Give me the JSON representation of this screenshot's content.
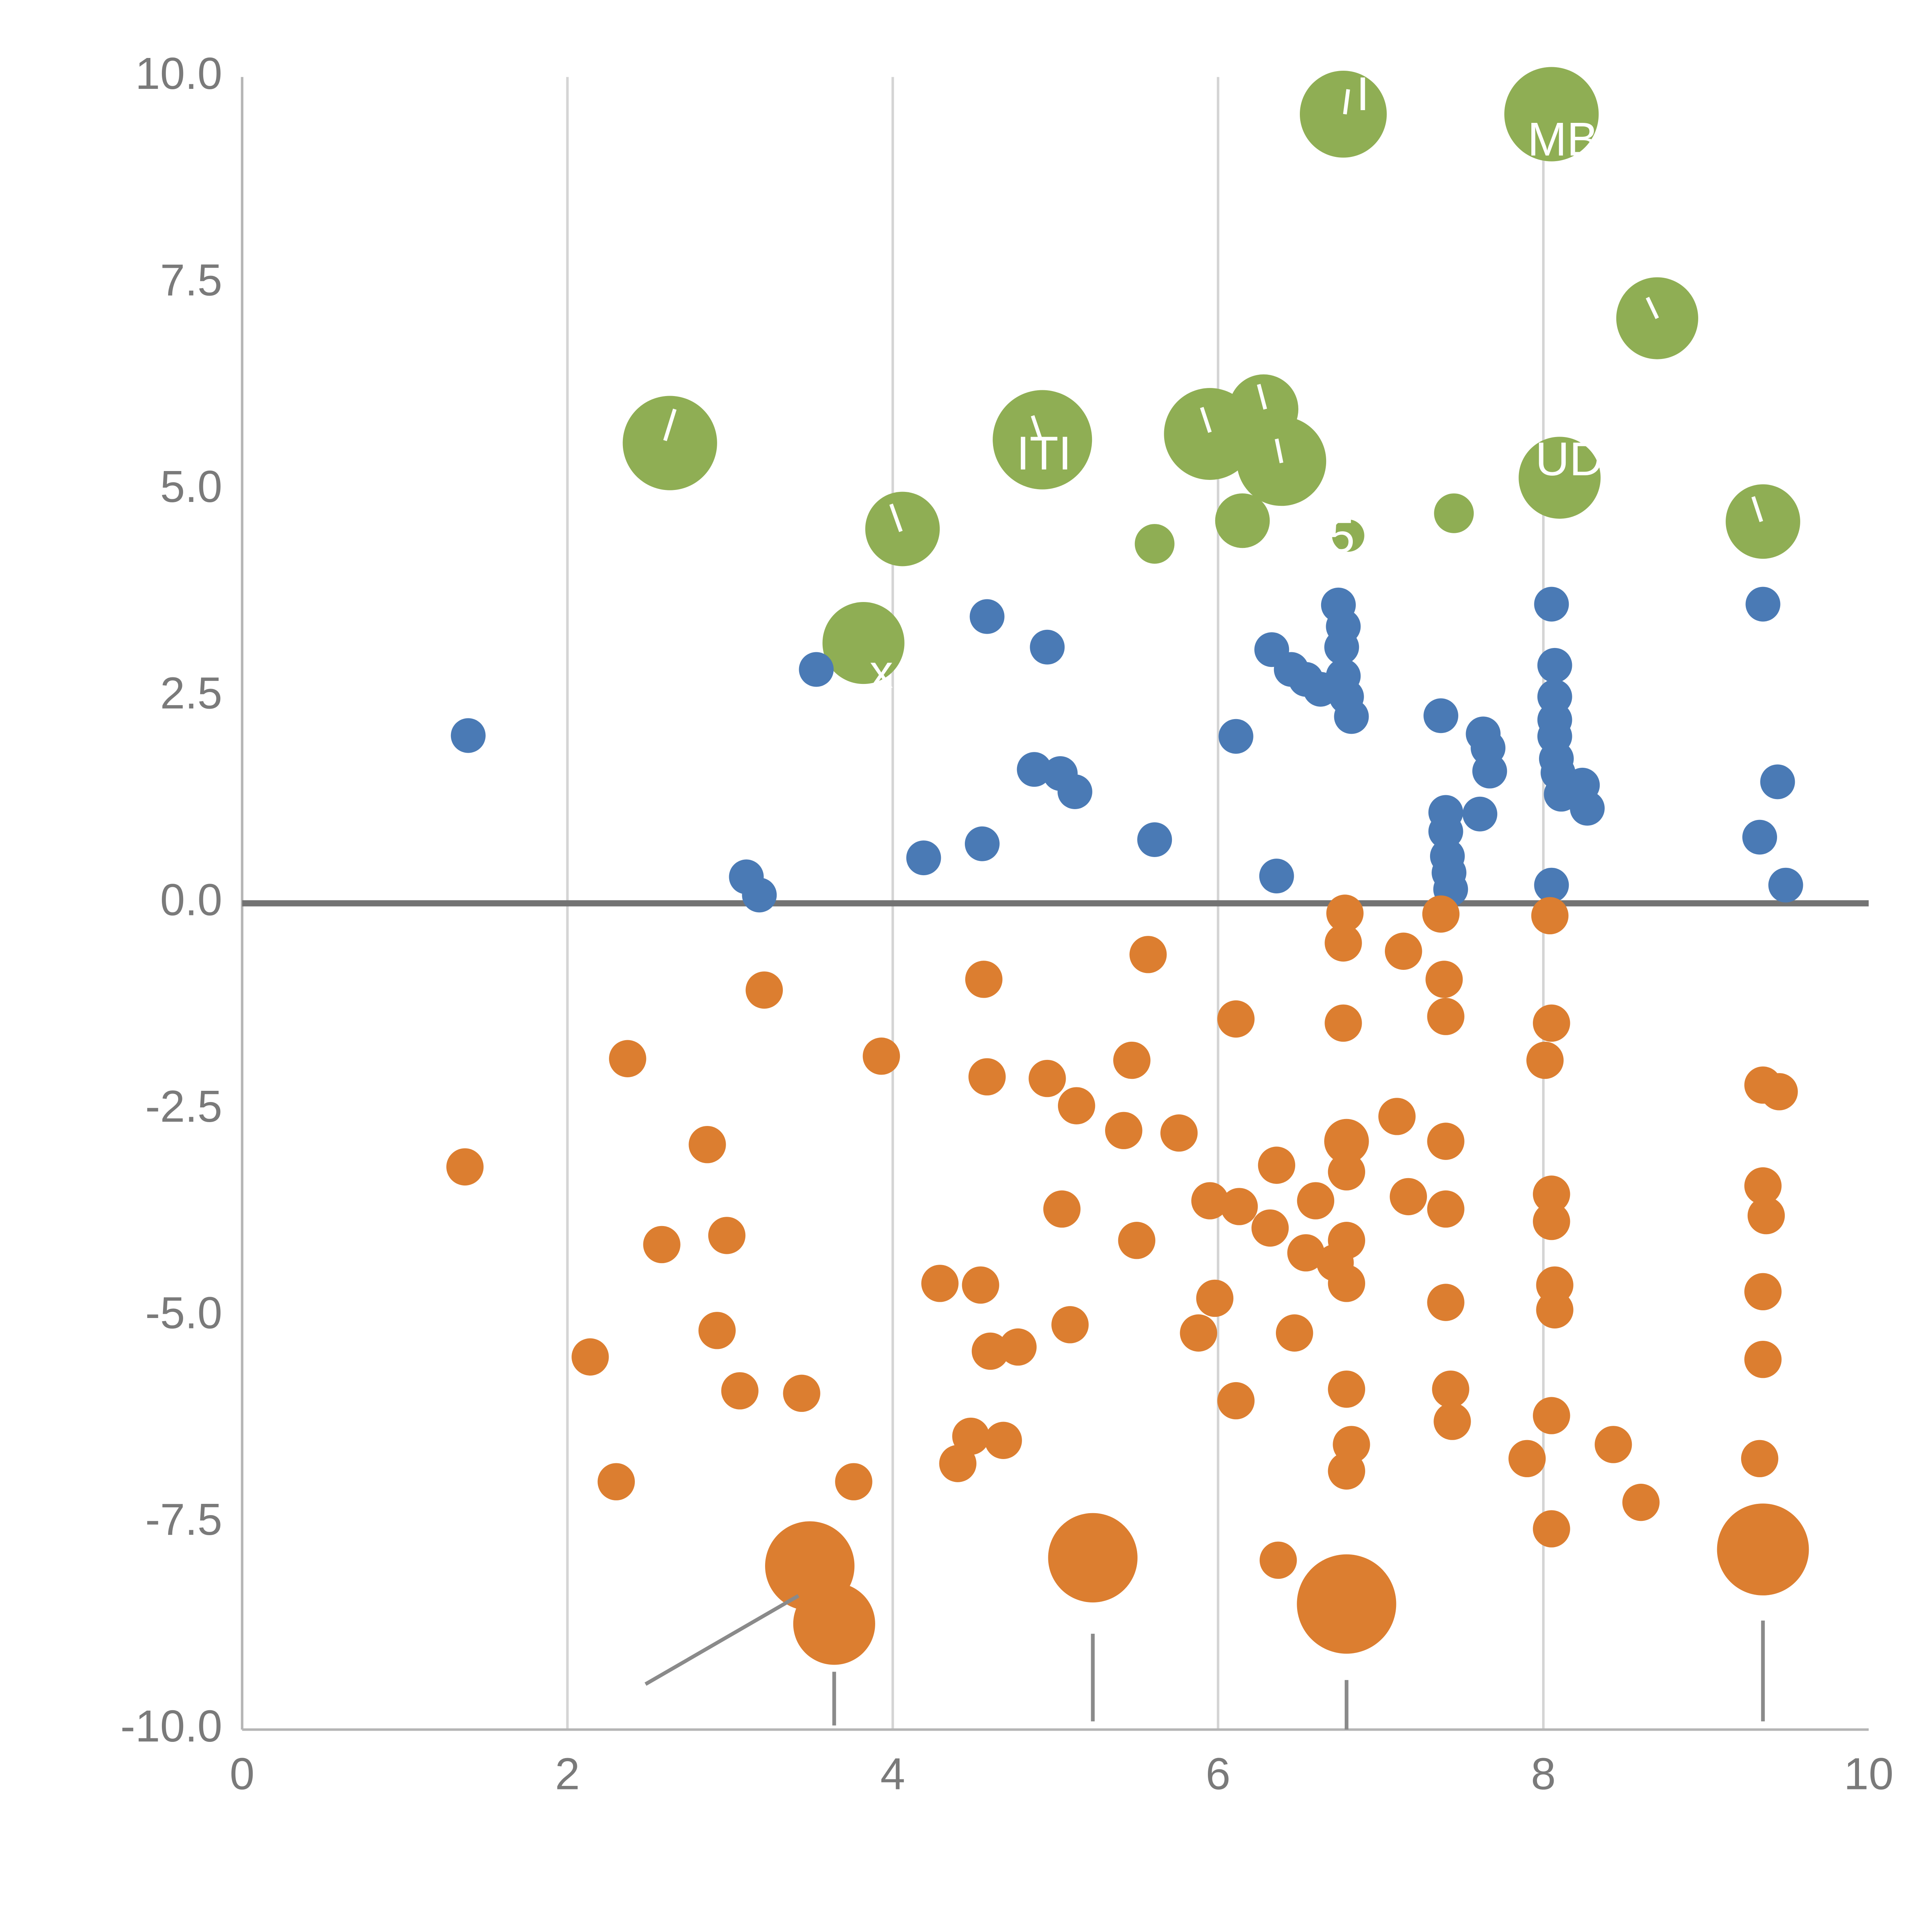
{
  "chart_data": {
    "type": "scatter",
    "title": "",
    "xlabel": "",
    "ylabel": "",
    "xlim": [
      0,
      10
    ],
    "ylim": [
      -10,
      10
    ],
    "x_ticks": [
      0,
      2,
      4,
      6,
      8,
      10
    ],
    "x_tick_labels": [
      "0",
      "2",
      "4",
      "6",
      "8",
      "10"
    ],
    "y_ticks": [
      10,
      7.5,
      5,
      2.5,
      0,
      -2.5,
      -5,
      -7.5,
      -10
    ],
    "y_tick_labels": [
      "10.0",
      "7.5",
      "5.0",
      "2.5",
      "0.0",
      "-2.5",
      "-5.0",
      "-7.5",
      "-10.0"
    ],
    "grid_x": [
      2,
      4,
      6,
      8
    ],
    "zero_line_y": 0,
    "legend": "none",
    "colors": {
      "green": "#8fae54",
      "blue": "#4a7ab5",
      "orange": "#dc7e30",
      "grid": "#d4d4d4",
      "spine": "#b5b5b5",
      "zero_line": "#737373",
      "tick_text": "#7a7a7a",
      "annotation_line": "#8a8a8a",
      "bubble_label": "#ffffff"
    },
    "series": [
      {
        "name": "green-bubbles",
        "color_key": "green",
        "default_radius": 30,
        "points": [
          [
            2.63,
            5.57,
            38
          ],
          [
            3.82,
            3.15,
            33
          ],
          [
            4.06,
            4.53,
            30
          ],
          [
            4.92,
            5.61,
            40
          ],
          [
            5.61,
            4.35,
            16
          ],
          [
            5.95,
            5.68,
            37
          ],
          [
            6.28,
            5.98,
            28
          ],
          [
            6.39,
            5.35,
            36
          ],
          [
            6.15,
            4.63,
            22
          ],
          [
            6.77,
            9.55,
            35
          ],
          [
            6.8,
            4.45,
            13
          ],
          [
            7.45,
            4.72,
            16
          ],
          [
            8.05,
            9.55,
            38
          ],
          [
            8.1,
            5.15,
            33
          ],
          [
            8.7,
            7.08,
            33
          ],
          [
            9.35,
            4.62,
            30
          ]
        ]
      },
      {
        "name": "blue-dots",
        "color_key": "blue",
        "default_radius": 14,
        "points": [
          [
            1.39,
            2.03
          ],
          [
            3.1,
            0.32
          ],
          [
            3.18,
            0.1
          ],
          [
            3.53,
            2.83
          ],
          [
            4.19,
            0.55
          ],
          [
            4.55,
            0.72
          ],
          [
            4.58,
            3.47
          ],
          [
            4.87,
            1.62
          ],
          [
            4.95,
            3.1
          ],
          [
            5.03,
            1.57
          ],
          [
            5.12,
            1.35
          ],
          [
            5.61,
            0.77
          ],
          [
            6.11,
            2.02
          ],
          [
            6.33,
            3.07
          ],
          [
            6.36,
            0.33
          ],
          [
            6.45,
            2.83
          ],
          [
            6.54,
            2.71
          ],
          [
            6.63,
            2.59
          ],
          [
            6.74,
            3.61
          ],
          [
            6.77,
            3.35
          ],
          [
            6.76,
            3.1
          ],
          [
            6.77,
            2.75
          ],
          [
            6.79,
            2.5
          ],
          [
            6.82,
            2.26
          ],
          [
            7.37,
            2.27
          ],
          [
            7.4,
            1.1
          ],
          [
            7.4,
            0.87
          ],
          [
            7.41,
            0.57
          ],
          [
            7.42,
            0.37
          ],
          [
            7.43,
            0.17
          ],
          [
            7.61,
            1.08
          ],
          [
            7.63,
            2.05
          ],
          [
            7.66,
            1.88
          ],
          [
            7.67,
            1.6
          ],
          [
            8.05,
            3.62
          ],
          [
            8.07,
            2.88
          ],
          [
            8.07,
            2.5
          ],
          [
            8.07,
            2.22
          ],
          [
            8.07,
            2.02
          ],
          [
            8.08,
            1.75
          ],
          [
            8.09,
            1.58
          ],
          [
            8.11,
            1.32
          ],
          [
            8.05,
            0.22
          ],
          [
            8.24,
            1.43
          ],
          [
            8.27,
            1.15
          ],
          [
            9.35,
            3.62
          ],
          [
            9.33,
            0.8
          ],
          [
            9.44,
            1.47
          ],
          [
            9.49,
            0.22
          ]
        ]
      },
      {
        "name": "orange-dots",
        "color_key": "orange",
        "default_radius": 15,
        "points": [
          [
            1.37,
            -3.19
          ],
          [
            2.14,
            -5.49
          ],
          [
            2.3,
            -7.0
          ],
          [
            2.37,
            -1.88
          ],
          [
            2.58,
            -4.13
          ],
          [
            2.86,
            -2.92
          ],
          [
            2.92,
            -5.17
          ],
          [
            2.98,
            -4.02
          ],
          [
            3.06,
            -5.9
          ],
          [
            3.21,
            -1.05
          ],
          [
            3.44,
            -5.93
          ],
          [
            3.49,
            -8.02,
            36
          ],
          [
            3.64,
            -8.72,
            33
          ],
          [
            3.76,
            -7.0
          ],
          [
            3.93,
            -1.85
          ],
          [
            4.29,
            -4.6
          ],
          [
            4.4,
            -6.78
          ],
          [
            4.48,
            -6.45
          ],
          [
            4.54,
            -4.62
          ],
          [
            4.56,
            -0.92
          ],
          [
            4.58,
            -2.1
          ],
          [
            4.6,
            -5.42
          ],
          [
            4.68,
            -6.5
          ],
          [
            4.77,
            -5.37
          ],
          [
            4.95,
            -2.12
          ],
          [
            5.04,
            -3.7
          ],
          [
            5.09,
            -5.1
          ],
          [
            5.13,
            -2.45
          ],
          [
            5.23,
            -7.92,
            36
          ],
          [
            5.42,
            -2.75
          ],
          [
            5.47,
            -1.9
          ],
          [
            5.5,
            -4.08
          ],
          [
            5.57,
            -0.62
          ],
          [
            5.76,
            -2.78
          ],
          [
            5.88,
            -5.2
          ],
          [
            5.95,
            -3.6
          ],
          [
            5.98,
            -4.78
          ],
          [
            6.11,
            -1.4
          ],
          [
            6.13,
            -3.67
          ],
          [
            6.11,
            -6.02
          ],
          [
            6.32,
            -3.93
          ],
          [
            6.36,
            -3.17
          ],
          [
            6.37,
            -7.95
          ],
          [
            6.47,
            -5.2
          ],
          [
            6.54,
            -4.23
          ],
          [
            6.6,
            -3.6
          ],
          [
            6.72,
            -4.35
          ],
          [
            6.78,
            -0.12
          ],
          [
            6.77,
            -0.48
          ],
          [
            6.77,
            -1.45
          ],
          [
            6.79,
            -2.88,
            18
          ],
          [
            6.79,
            -3.25
          ],
          [
            6.79,
            -4.08
          ],
          [
            6.79,
            -4.6
          ],
          [
            6.79,
            -5.88
          ],
          [
            6.82,
            -6.55
          ],
          [
            6.79,
            -6.87
          ],
          [
            6.79,
            -8.48,
            40
          ],
          [
            7.1,
            -2.58
          ],
          [
            7.14,
            -0.58
          ],
          [
            7.17,
            -3.55
          ],
          [
            7.37,
            -0.13
          ],
          [
            7.39,
            -0.92
          ],
          [
            7.4,
            -1.37
          ],
          [
            7.4,
            -2.88
          ],
          [
            7.4,
            -3.7
          ],
          [
            7.4,
            -4.83
          ],
          [
            7.43,
            -5.88
          ],
          [
            7.44,
            -6.27
          ],
          [
            7.9,
            -6.72
          ],
          [
            8.01,
            -1.9
          ],
          [
            8.04,
            -0.15
          ],
          [
            8.05,
            -1.45
          ],
          [
            8.05,
            -3.52
          ],
          [
            8.05,
            -3.85
          ],
          [
            8.07,
            -4.62
          ],
          [
            8.07,
            -4.92
          ],
          [
            8.05,
            -6.2
          ],
          [
            8.05,
            -7.57
          ],
          [
            8.43,
            -6.55
          ],
          [
            8.6,
            -7.25
          ],
          [
            9.35,
            -2.2
          ],
          [
            9.45,
            -2.28
          ],
          [
            9.35,
            -3.42
          ],
          [
            9.37,
            -3.78
          ],
          [
            9.35,
            -4.7
          ],
          [
            9.35,
            -5.52
          ],
          [
            9.33,
            -6.72
          ],
          [
            9.35,
            -7.82,
            37
          ]
        ]
      }
    ],
    "annotations": {
      "pin_lines": [
        [
          2.48,
          -9.45,
          3.42,
          -8.38
        ],
        [
          3.64,
          -9.3,
          3.64,
          -9.95
        ],
        [
          5.23,
          -8.84,
          5.23,
          -9.9
        ],
        [
          6.79,
          -9.4,
          6.79,
          -10.0
        ],
        [
          9.35,
          -8.68,
          9.35,
          -9.9
        ]
      ],
      "bubble_ticks": [
        [
          2.66,
          5.98,
          2.6,
          5.6
        ],
        [
          3.99,
          4.83,
          4.05,
          4.5
        ],
        [
          4.86,
          5.9,
          4.91,
          5.61
        ],
        [
          5.9,
          6.0,
          5.95,
          5.7
        ],
        [
          6.25,
          6.28,
          6.29,
          5.98
        ],
        [
          6.36,
          5.62,
          6.39,
          5.33
        ],
        [
          6.8,
          9.85,
          6.78,
          9.55
        ],
        [
          8.64,
          7.33,
          8.7,
          7.08
        ],
        [
          9.29,
          4.92,
          9.34,
          4.62
        ]
      ],
      "labels": [
        {
          "x": 4.93,
          "y": 5.4,
          "text": "ITI"
        },
        {
          "x": 8.12,
          "y": 9.2,
          "text": "MB"
        },
        {
          "x": 8.16,
          "y": 5.33,
          "text": "UD"
        },
        {
          "x": 6.76,
          "y": 4.4,
          "text": "5"
        },
        {
          "x": 6.89,
          "y": 9.75,
          "text": "I"
        },
        {
          "x": 3.93,
          "y": 2.76,
          "text": "x"
        }
      ]
    }
  }
}
